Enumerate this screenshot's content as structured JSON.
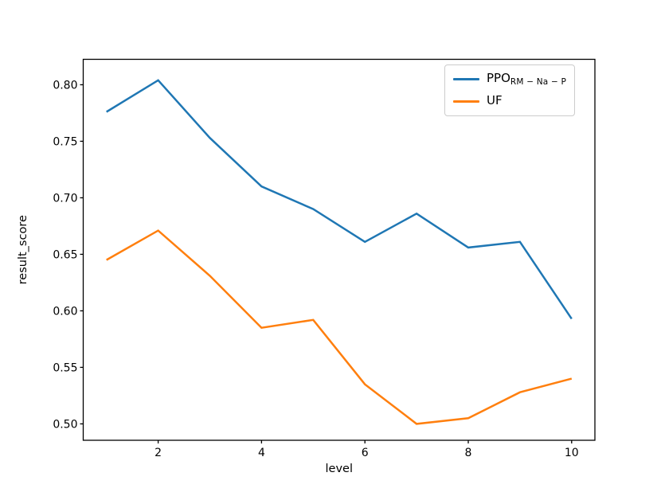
{
  "chart_data": {
    "type": "line",
    "title": "",
    "xlabel": "level",
    "ylabel": "result_score",
    "x": [
      1,
      2,
      3,
      4,
      5,
      6,
      7,
      8,
      9,
      10
    ],
    "series": [
      {
        "name": "PPO_RM-Na-P",
        "legend_base": "PPO",
        "legend_sub": "RM − Na − P",
        "color": "#1f77b4",
        "values": [
          0.776,
          0.804,
          0.753,
          0.71,
          0.69,
          0.661,
          0.686,
          0.656,
          0.661,
          0.593
        ]
      },
      {
        "name": "UF",
        "legend_base": "UF",
        "legend_sub": "",
        "color": "#ff7f0e",
        "values": [
          0.645,
          0.671,
          0.631,
          0.585,
          0.592,
          0.535,
          0.5,
          0.505,
          0.528,
          0.54
        ]
      }
    ],
    "xticks": [
      2,
      4,
      6,
      8,
      10
    ],
    "xtick_labels": [
      "2",
      "4",
      "6",
      "8",
      "10"
    ],
    "yticks": [
      0.5,
      0.55,
      0.6,
      0.65,
      0.7,
      0.75,
      0.8
    ],
    "ytick_labels": [
      "0.50",
      "0.55",
      "0.60",
      "0.65",
      "0.70",
      "0.75",
      "0.80"
    ],
    "xlim": [
      0.55,
      10.45
    ],
    "ylim": [
      0.4855,
      0.8225
    ],
    "grid": false,
    "legend_position": "upper right",
    "axis_color": "#000000"
  }
}
